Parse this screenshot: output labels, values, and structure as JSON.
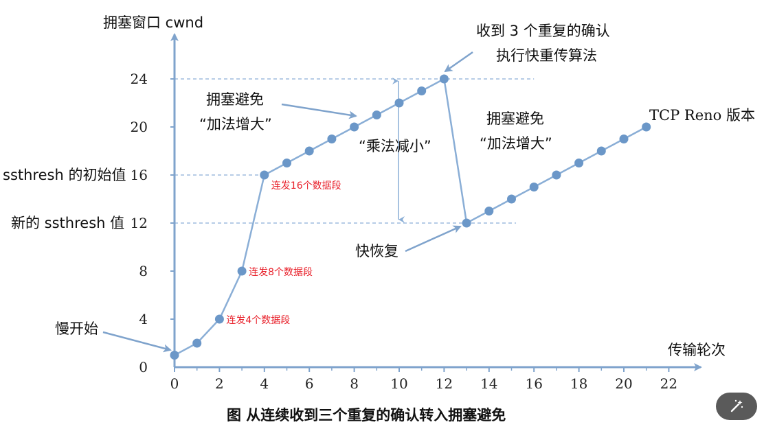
{
  "chart_data": {
    "type": "line",
    "title": "",
    "xlabel": "传输轮次",
    "ylabel": "拥塞窗口 cwnd",
    "xlim": [
      0,
      23
    ],
    "ylim": [
      0,
      26
    ],
    "x_ticks": [
      0,
      2,
      4,
      6,
      8,
      10,
      12,
      14,
      16,
      18,
      20,
      22
    ],
    "y_ticks": [
      0,
      4,
      8,
      12,
      16,
      20,
      24
    ],
    "series": [
      {
        "points": [
          [
            0,
            1
          ],
          [
            1,
            2
          ],
          [
            2,
            4
          ],
          [
            3,
            8
          ],
          [
            4,
            16
          ],
          [
            5,
            17
          ],
          [
            6,
            18
          ],
          [
            7,
            19
          ],
          [
            8,
            20
          ],
          [
            9,
            21
          ],
          [
            10,
            22
          ],
          [
            11,
            23
          ],
          [
            12,
            24
          ],
          [
            13,
            12
          ],
          [
            14,
            13
          ],
          [
            15,
            14
          ],
          [
            16,
            15
          ],
          [
            17,
            16
          ],
          [
            18,
            17
          ],
          [
            19,
            18
          ],
          [
            20,
            19
          ],
          [
            21,
            20
          ]
        ]
      }
    ],
    "reference_lines": [
      {
        "y": 24,
        "x_end": 16
      },
      {
        "y": 16,
        "x_end": 4
      },
      {
        "y": 12,
        "x_end": 15.2
      }
    ],
    "point_labels": [
      {
        "x": 2,
        "y": 4,
        "text": "连发4个数据段"
      },
      {
        "x": 3,
        "y": 8,
        "text": "连发8个数据段"
      },
      {
        "x": 4,
        "y": 16,
        "text": "连发16个数据段"
      }
    ],
    "y_side_labels": [
      {
        "y": 16,
        "text": "ssthresh  的初始值"
      },
      {
        "y": 12,
        "text": "新的  ssthresh  值"
      }
    ],
    "annotations": {
      "slow_start": "慢开始",
      "ca1_line1": "拥塞避免",
      "ca1_line2": "“加法增大”",
      "md": "“乘法减小”",
      "triple_ack_line1": "收到  3  个重复的确认",
      "triple_ack_line2": "执行快重传算法",
      "ca2_line1": "拥塞避免",
      "ca2_line2": "“加法增大”",
      "reno": "TCP Reno  版本",
      "fast_recovery": "快恢复"
    },
    "caption": "图  从连续收到三个重复的确认转入拥塞避免",
    "colors": {
      "axis": "#7fa3cc",
      "line": "#8aaed6",
      "point": "#6b97c8",
      "red": "#e8202a",
      "arrow": "#7fa3cc"
    }
  }
}
